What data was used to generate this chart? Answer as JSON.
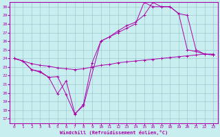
{
  "xlabel": "Windchill (Refroidissement éolien,°C)",
  "bg_color": "#c8eef0",
  "grid_color": "#a0c8d0",
  "line_color": "#aa00aa",
  "xlim": [
    -0.5,
    23.5
  ],
  "ylim": [
    16.5,
    30.5
  ],
  "xticks": [
    0,
    1,
    2,
    3,
    4,
    5,
    6,
    7,
    8,
    9,
    10,
    11,
    12,
    13,
    14,
    15,
    16,
    17,
    18,
    19,
    20,
    21,
    22,
    23
  ],
  "yticks": [
    17,
    18,
    19,
    20,
    21,
    22,
    23,
    24,
    25,
    26,
    27,
    28,
    29,
    30
  ],
  "line1_x": [
    0,
    1,
    2,
    3,
    4,
    5,
    6,
    7,
    8,
    9,
    10,
    11,
    12,
    13,
    14,
    15,
    16,
    17,
    18,
    19,
    20,
    21,
    22,
    23
  ],
  "line1_y": [
    24.0,
    23.7,
    23.4,
    23.2,
    23.1,
    22.9,
    22.8,
    22.7,
    22.8,
    23.0,
    23.2,
    23.3,
    23.5,
    23.6,
    23.7,
    23.8,
    23.9,
    24.0,
    24.1,
    24.2,
    24.3,
    24.4,
    24.5,
    24.5
  ],
  "line2_x": [
    0,
    1,
    2,
    3,
    4,
    5,
    6,
    7,
    8,
    9,
    10,
    11,
    12,
    13,
    14,
    15,
    16,
    17,
    18,
    19,
    20,
    21,
    22,
    23
  ],
  "line2_y": [
    24.0,
    23.7,
    22.7,
    22.5,
    21.8,
    21.9,
    19.8,
    17.5,
    18.7,
    23.5,
    26.0,
    26.5,
    27.0,
    27.5,
    28.0,
    30.5,
    30.0,
    30.0,
    30.0,
    29.2,
    25.0,
    24.8,
    24.5,
    24.4
  ],
  "line3_x": [
    0,
    1,
    2,
    3,
    4,
    5,
    6,
    7,
    8,
    10,
    11,
    12,
    13,
    14,
    15,
    16,
    17,
    18,
    19,
    20,
    21,
    22,
    23
  ],
  "line3_y": [
    24.0,
    23.7,
    22.7,
    22.4,
    21.8,
    19.9,
    21.4,
    17.6,
    18.5,
    26.0,
    26.5,
    27.2,
    27.8,
    28.2,
    29.0,
    30.5,
    30.0,
    30.0,
    29.2,
    29.0,
    25.0,
    24.5,
    24.4
  ]
}
